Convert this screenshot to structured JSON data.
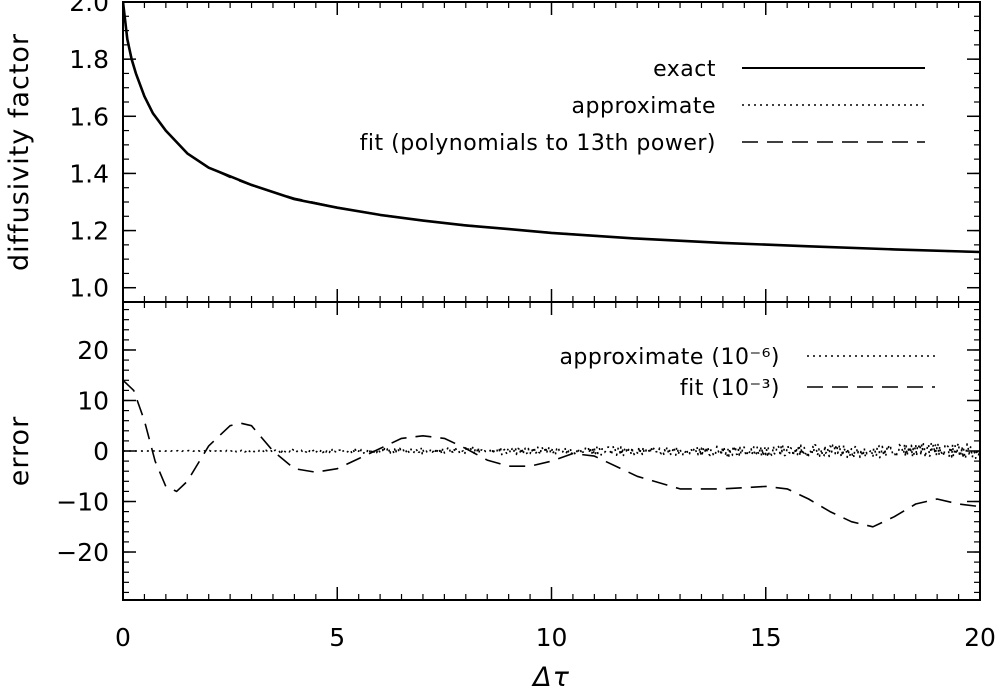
{
  "chart_data": [
    {
      "type": "line",
      "panel": "top",
      "ylabel": "diffusivity factor",
      "xlabel": "",
      "xlim": [
        0,
        20
      ],
      "ylim": [
        0.95,
        2.0
      ],
      "x_ticks": [
        "0",
        "5",
        "10",
        "15",
        "20"
      ],
      "y_ticks": [
        "1.0",
        "1.2",
        "1.4",
        "1.6",
        "1.8",
        "2.0"
      ],
      "legend_position": "top-right",
      "series": [
        {
          "name": "exact",
          "style": "solid",
          "x": [
            0,
            0.1,
            0.2,
            0.3,
            0.5,
            0.7,
            1,
            1.5,
            2,
            2.5,
            3,
            4,
            5,
            6,
            7,
            8,
            9,
            10,
            12,
            14,
            16,
            18,
            20
          ],
          "y": [
            2.0,
            1.87,
            1.8,
            1.75,
            1.67,
            1.61,
            1.55,
            1.47,
            1.42,
            1.39,
            1.36,
            1.31,
            1.28,
            1.255,
            1.235,
            1.218,
            1.205,
            1.192,
            1.172,
            1.157,
            1.145,
            1.134,
            1.125
          ]
        },
        {
          "name": "approximate",
          "style": "dotted",
          "x": [
            0,
            0.1,
            0.2,
            0.3,
            0.5,
            0.7,
            1,
            1.5,
            2,
            2.5,
            3,
            4,
            5,
            6,
            7,
            8,
            9,
            10,
            12,
            14,
            16,
            18,
            20
          ],
          "y": [
            2.0,
            1.87,
            1.8,
            1.75,
            1.67,
            1.61,
            1.55,
            1.47,
            1.42,
            1.39,
            1.36,
            1.31,
            1.28,
            1.255,
            1.235,
            1.218,
            1.205,
            1.192,
            1.172,
            1.157,
            1.145,
            1.134,
            1.125
          ]
        },
        {
          "name": "fit (polynomials to 13th power)",
          "style": "dashed",
          "x": [
            0,
            0.1,
            0.2,
            0.3,
            0.5,
            0.7,
            1,
            1.5,
            2,
            2.5,
            3,
            4,
            5,
            6,
            7,
            8,
            9,
            10,
            12,
            14,
            16,
            18,
            20
          ],
          "y": [
            1.99,
            1.875,
            1.805,
            1.752,
            1.668,
            1.608,
            1.548,
            1.472,
            1.421,
            1.386,
            1.358,
            1.313,
            1.281,
            1.256,
            1.235,
            1.219,
            1.205,
            1.193,
            1.172,
            1.157,
            1.145,
            1.134,
            1.124
          ]
        }
      ]
    },
    {
      "type": "line",
      "panel": "bottom",
      "ylabel": "error",
      "xlabel": "Δτ",
      "xlim": [
        0,
        20
      ],
      "ylim": [
        -29.5,
        29.5
      ],
      "x_ticks": [
        "0",
        "5",
        "10",
        "15",
        "20"
      ],
      "y_ticks": [
        "−20",
        "−10",
        "0",
        "10",
        "20"
      ],
      "legend_position": "top-right",
      "series": [
        {
          "name": "approximate (10⁻⁶)",
          "style": "dotted",
          "x": [
            0,
            2,
            4,
            6,
            8,
            10,
            12,
            14,
            16,
            18,
            20
          ],
          "y": [
            0,
            0,
            0,
            0,
            0,
            0,
            0,
            0,
            0,
            0,
            0
          ],
          "noise": [
            0,
            0.1,
            0.3,
            0.5,
            0.7,
            0.8,
            0.9,
            1.0,
            1.2,
            1.4,
            1.6
          ]
        },
        {
          "name": "fit (10⁻³)",
          "style": "dashed",
          "x": [
            0,
            0.25,
            0.5,
            0.75,
            1.0,
            1.25,
            1.5,
            2.0,
            2.5,
            2.75,
            3.0,
            3.5,
            4.0,
            4.5,
            5.0,
            5.5,
            6.0,
            6.5,
            7.0,
            7.5,
            8.0,
            8.5,
            9.0,
            9.5,
            10.0,
            10.5,
            11.0,
            12.0,
            13.0,
            14.0,
            15.0,
            15.5,
            16.0,
            16.5,
            17.0,
            17.5,
            18.0,
            18.5,
            19.0,
            19.5,
            20.0
          ],
          "y": [
            14,
            12,
            6,
            -2,
            -7,
            -8,
            -6,
            1,
            5,
            5.5,
            5,
            0,
            -3.5,
            -4.2,
            -3.5,
            -1.5,
            0.5,
            2.5,
            3,
            2.5,
            0.5,
            -1.8,
            -3,
            -3,
            -2,
            -0.5,
            -1,
            -5,
            -7.5,
            -7.5,
            -7,
            -7.5,
            -9.5,
            -12,
            -14,
            -15,
            -13,
            -10.5,
            -9.5,
            -10.5,
            -11
          ]
        }
      ]
    }
  ]
}
